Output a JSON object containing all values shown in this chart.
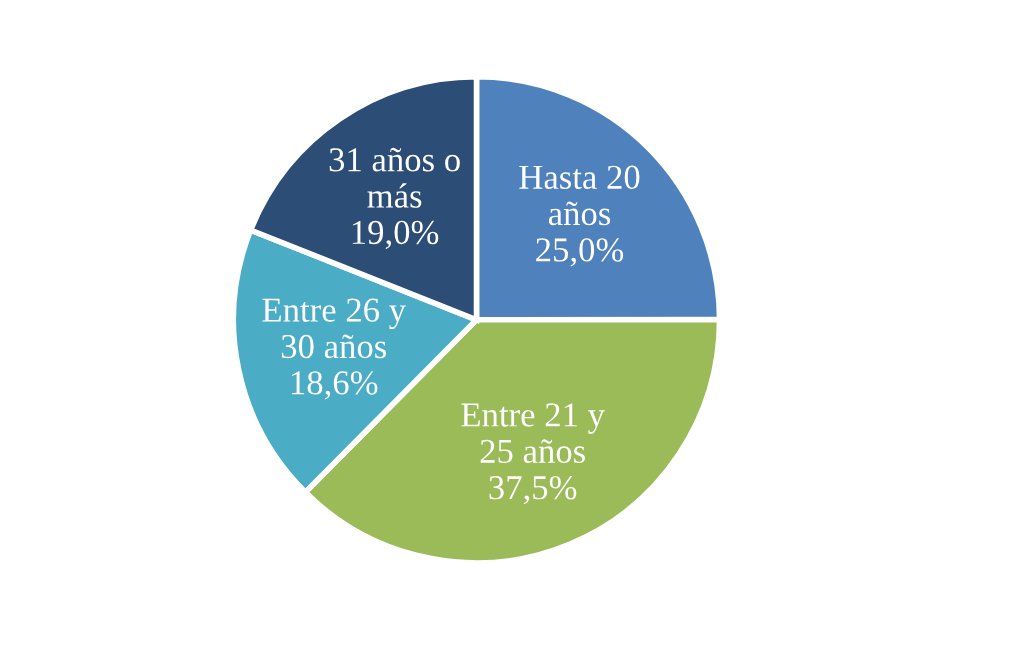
{
  "chart_data": {
    "type": "pie",
    "categories": [
      "Hasta 20\naños",
      "Entre 21 y\n25 años",
      "Entre 26 y\n30 años",
      "31 años o\nmás"
    ],
    "values": [
      25.0,
      37.5,
      18.6,
      19.0
    ],
    "value_labels": [
      "25,0%",
      "37,5%",
      "18,6%",
      "19,0%"
    ],
    "colors": [
      "#4f81bd",
      "#9bbb59",
      "#4bacc6",
      "#2c4d75"
    ],
    "legend": false
  }
}
